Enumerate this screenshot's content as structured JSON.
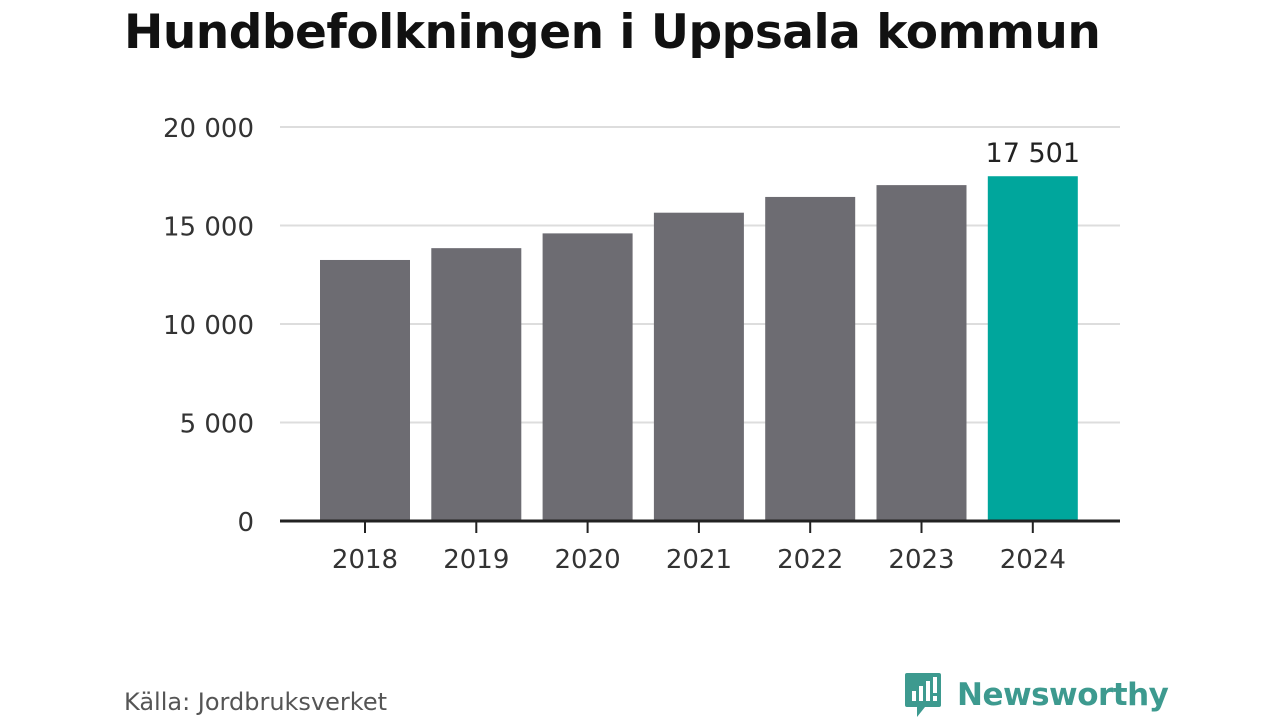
{
  "title": "Hundbefolkningen i Uppsala kommun",
  "source": "Källa: Jordbruksverket",
  "brand": {
    "name": "Newsworthy",
    "icon": "newsworthy-logo-icon",
    "color": "#3d9a8f"
  },
  "colors": {
    "bar": "#6d6c72",
    "highlight": "#00a69c",
    "grid": "#dddddd",
    "axis": "#222222",
    "text": "#333333"
  },
  "chart_data": {
    "type": "bar",
    "title": "Hundbefolkningen i Uppsala kommun",
    "xlabel": "",
    "ylabel": "",
    "categories": [
      "2018",
      "2019",
      "2020",
      "2021",
      "2022",
      "2023",
      "2024"
    ],
    "values": [
      13250,
      13850,
      14600,
      15650,
      16450,
      17050,
      17501
    ],
    "highlight_index": 6,
    "data_labels": [
      {
        "category": "2024",
        "text": "17 501"
      }
    ],
    "ylim": [
      0,
      20000
    ],
    "yticks": [
      0,
      5000,
      10000,
      15000,
      20000
    ],
    "ytick_labels": [
      "0",
      "5 000",
      "10 000",
      "15 000",
      "20 000"
    ],
    "grid": true,
    "legend": "none"
  }
}
